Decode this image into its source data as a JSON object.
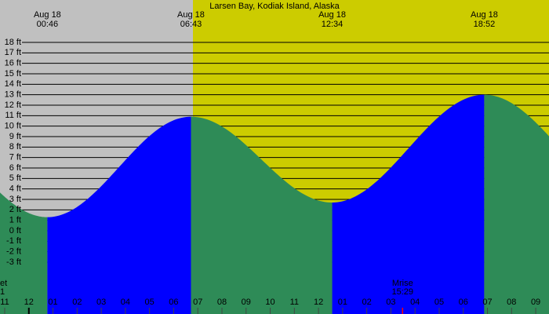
{
  "chart_data": {
    "type": "tide",
    "title": "Larsen Bay, Kodiak Island, Alaska",
    "xlim": [
      -1.195,
      21.55
    ],
    "ylim": [
      -7.95,
      22.05
    ],
    "yticks": [
      {
        "value": 18,
        "label": "18 ft"
      },
      {
        "value": 17,
        "label": "17 ft"
      },
      {
        "value": 16,
        "label": "16 ft"
      },
      {
        "value": 15,
        "label": "15 ft"
      },
      {
        "value": 14,
        "label": "14 ft"
      },
      {
        "value": 13,
        "label": "13 ft"
      },
      {
        "value": 12,
        "label": "12 ft"
      },
      {
        "value": 11,
        "label": "11 ft"
      },
      {
        "value": 10,
        "label": "10 ft"
      },
      {
        "value": 9,
        "label": "9 ft"
      },
      {
        "value": 8,
        "label": "8 ft"
      },
      {
        "value": 7,
        "label": "7 ft"
      },
      {
        "value": 6,
        "label": "6 ft"
      },
      {
        "value": 5,
        "label": "5 ft"
      },
      {
        "value": 4,
        "label": "4 ft"
      },
      {
        "value": 3,
        "label": "3 ft"
      },
      {
        "value": 2,
        "label": "2 ft"
      },
      {
        "value": 1,
        "label": "1 ft"
      },
      {
        "value": 0,
        "label": "0 ft"
      },
      {
        "value": -1,
        "label": "-1 ft"
      },
      {
        "value": -2,
        "label": "-2 ft"
      },
      {
        "value": -3,
        "label": "-3 ft"
      }
    ],
    "xticks": [
      {
        "value": -1,
        "label": "11"
      },
      {
        "value": 0,
        "label": "12"
      },
      {
        "value": 1,
        "label": "01"
      },
      {
        "value": 2,
        "label": "02"
      },
      {
        "value": 3,
        "label": "03"
      },
      {
        "value": 4,
        "label": "04"
      },
      {
        "value": 5,
        "label": "05"
      },
      {
        "value": 6,
        "label": "06"
      },
      {
        "value": 7,
        "label": "07"
      },
      {
        "value": 8,
        "label": "08"
      },
      {
        "value": 9,
        "label": "09"
      },
      {
        "value": 10,
        "label": "10"
      },
      {
        "value": 11,
        "label": "11"
      },
      {
        "value": 12,
        "label": "12"
      },
      {
        "value": 13,
        "label": "01"
      },
      {
        "value": 14,
        "label": "02"
      },
      {
        "value": 15,
        "label": "03"
      },
      {
        "value": 16,
        "label": "04"
      },
      {
        "value": 17,
        "label": "05"
      },
      {
        "value": 18,
        "label": "06"
      },
      {
        "value": 19,
        "label": "07"
      },
      {
        "value": 20,
        "label": "08"
      },
      {
        "value": 21,
        "label": "09"
      }
    ],
    "extremes": [
      {
        "date": "Aug 18",
        "time": "00:46",
        "hour": 0.767,
        "height": 1.3
      },
      {
        "date": "Aug 18",
        "time": "06:43",
        "hour": 6.717,
        "height": 10.9
      },
      {
        "date": "Aug 18",
        "time": "12:34",
        "hour": 12.567,
        "height": 2.7
      },
      {
        "date": "Aug 18",
        "time": "18:52",
        "hour": 18.867,
        "height": 13.0
      }
    ],
    "moonrise": {
      "label": "Mrise",
      "time": "15:29",
      "hour": 15.483,
      "color": "#ff0000"
    },
    "clipped_event": {
      "label": "et",
      "time": "1"
    },
    "rising_color": "#0000ff",
    "falling_color": "#2e8b57",
    "grid": true
  }
}
